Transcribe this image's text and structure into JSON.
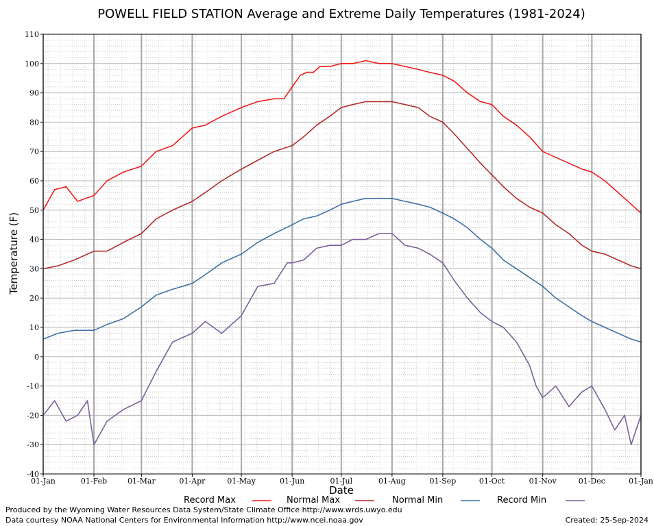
{
  "chart_data": {
    "type": "line",
    "title": "POWELL FIELD STATION Average and Extreme Daily Temperatures (1981-2024)",
    "xlabel": "Date",
    "ylabel": "Temperature (F)",
    "ylim": [
      -40,
      110
    ],
    "yticks": [
      -40,
      -30,
      -20,
      -10,
      0,
      10,
      20,
      30,
      40,
      50,
      60,
      70,
      80,
      90,
      100,
      110
    ],
    "xlim": [
      1,
      366
    ],
    "x_ticks": [
      {
        "label": "01-Jan",
        "day": 1
      },
      {
        "label": "01-Feb",
        "day": 32
      },
      {
        "label": "01-Mar",
        "day": 61
      },
      {
        "label": "01-Apr",
        "day": 92
      },
      {
        "label": "01-May",
        "day": 122
      },
      {
        "label": "01-Jun",
        "day": 153
      },
      {
        "label": "01-Jul",
        "day": 183
      },
      {
        "label": "01-Aug",
        "day": 214
      },
      {
        "label": "01-Sep",
        "day": 245
      },
      {
        "label": "01-Oct",
        "day": 275
      },
      {
        "label": "01-Nov",
        "day": 306
      },
      {
        "label": "01-Dec",
        "day": 336
      },
      {
        "label": "01-Jan",
        "day": 366
      }
    ],
    "grid": true,
    "legend_position": "bottom",
    "series": [
      {
        "name": "Record Max",
        "color": "#ee1c1c",
        "x": [
          1,
          8,
          15,
          22,
          32,
          40,
          50,
          61,
          70,
          80,
          92,
          100,
          110,
          122,
          132,
          142,
          148,
          153,
          158,
          162,
          166,
          170,
          176,
          183,
          190,
          198,
          206,
          214,
          222,
          230,
          237,
          245,
          252,
          260,
          268,
          275,
          282,
          290,
          298,
          306,
          314,
          322,
          330,
          336,
          344,
          352,
          360,
          366
        ],
        "y": [
          50,
          57,
          58,
          53,
          55,
          60,
          63,
          65,
          70,
          72,
          78,
          79,
          82,
          85,
          87,
          88,
          88,
          92,
          96,
          97,
          97,
          99,
          99,
          100,
          100,
          101,
          100,
          100,
          99,
          98,
          97,
          96,
          94,
          90,
          87,
          86,
          82,
          79,
          75,
          70,
          68,
          66,
          64,
          63,
          60,
          56,
          52,
          49
        ]
      },
      {
        "name": "Normal Max",
        "color": "#b22a2a",
        "x": [
          1,
          10,
          20,
          32,
          40,
          50,
          61,
          70,
          80,
          92,
          100,
          110,
          122,
          132,
          142,
          153,
          160,
          168,
          176,
          183,
          190,
          198,
          206,
          214,
          222,
          230,
          237,
          245,
          252,
          260,
          268,
          275,
          282,
          290,
          298,
          306,
          314,
          322,
          330,
          336,
          344,
          352,
          360,
          366
        ],
        "y": [
          30,
          31,
          33,
          36,
          36,
          39,
          42,
          47,
          50,
          53,
          56,
          60,
          64,
          67,
          70,
          72,
          75,
          79,
          82,
          85,
          86,
          87,
          87,
          87,
          86,
          85,
          82,
          80,
          76,
          71,
          66,
          62,
          58,
          54,
          51,
          49,
          45,
          42,
          38,
          36,
          35,
          33,
          31,
          30
        ]
      },
      {
        "name": "Normal Min",
        "color": "#3d6fa8",
        "x": [
          1,
          10,
          20,
          32,
          40,
          50,
          61,
          70,
          80,
          92,
          100,
          110,
          122,
          132,
          142,
          153,
          160,
          168,
          176,
          183,
          190,
          198,
          206,
          214,
          222,
          230,
          237,
          245,
          252,
          260,
          268,
          275,
          282,
          290,
          298,
          306,
          314,
          322,
          330,
          336,
          344,
          352,
          360,
          366
        ],
        "y": [
          6,
          8,
          9,
          9,
          11,
          13,
          17,
          21,
          23,
          25,
          28,
          32,
          35,
          39,
          42,
          45,
          47,
          48,
          50,
          52,
          53,
          54,
          54,
          54,
          53,
          52,
          51,
          49,
          47,
          44,
          40,
          37,
          33,
          30,
          27,
          24,
          20,
          17,
          14,
          12,
          10,
          8,
          6,
          5
        ]
      },
      {
        "name": "Record Min",
        "color": "#7a5f9e",
        "x": [
          1,
          8,
          15,
          22,
          28,
          32,
          40,
          50,
          61,
          70,
          80,
          92,
          100,
          110,
          122,
          132,
          142,
          150,
          153,
          160,
          168,
          176,
          183,
          190,
          198,
          206,
          214,
          222,
          230,
          237,
          245,
          252,
          260,
          268,
          275,
          282,
          290,
          298,
          302,
          306,
          314,
          322,
          330,
          336,
          344,
          350,
          356,
          360,
          366
        ],
        "y": [
          -20,
          -15,
          -22,
          -20,
          -15,
          -30,
          -22,
          -18,
          -15,
          -5,
          5,
          8,
          12,
          8,
          14,
          24,
          25,
          32,
          32,
          33,
          37,
          38,
          38,
          40,
          40,
          42,
          42,
          38,
          37,
          35,
          32,
          26,
          20,
          15,
          12,
          10,
          5,
          -3,
          -10,
          -14,
          -10,
          -17,
          -12,
          -10,
          -18,
          -25,
          -20,
          -30,
          -20
        ]
      }
    ],
    "footer_left": [
      "Produced by the Wyoming Water Resources Data System/State Climate Office http://www.wrds.uwyo.edu",
      "Data courtesy NOAA National Centers for Environmental Information http://www.ncei.noaa.gov"
    ],
    "footer_right": "Created:  25-Sep-2024"
  }
}
